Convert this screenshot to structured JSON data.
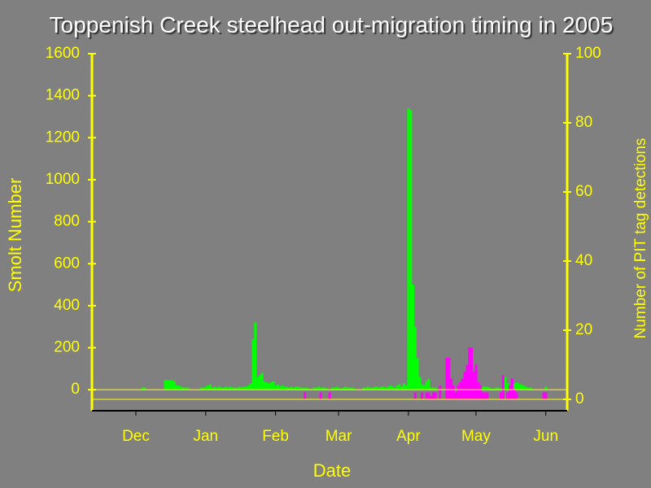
{
  "chart_data": {
    "type": "bar",
    "title": "Toppenish Creek steelhead out-migration timing in 2005",
    "x_label": "Date",
    "y_label": "Smolt Number",
    "y2_label": "Number of PIT tag detections",
    "categories": [
      null,
      null,
      null,
      null,
      null,
      null,
      null,
      null,
      null,
      null,
      null,
      null,
      null,
      null,
      null,
      null,
      null,
      null,
      null,
      "Dec",
      null,
      null,
      null,
      null,
      null,
      null,
      null,
      null,
      null,
      null,
      null,
      null,
      null,
      null,
      null,
      null,
      null,
      null,
      null,
      null,
      null,
      null,
      null,
      null,
      null,
      null,
      null,
      null,
      null,
      null,
      "Jan",
      null,
      null,
      null,
      null,
      null,
      null,
      null,
      null,
      null,
      null,
      null,
      null,
      null,
      null,
      null,
      null,
      null,
      null,
      null,
      null,
      null,
      null,
      null,
      null,
      null,
      null,
      null,
      null,
      null,
      null,
      "Feb",
      null,
      null,
      null,
      null,
      null,
      null,
      null,
      null,
      null,
      null,
      null,
      null,
      null,
      null,
      null,
      null,
      null,
      null,
      null,
      null,
      null,
      null,
      null,
      null,
      null,
      null,
      null,
      "Mar",
      null,
      null,
      null,
      null,
      null,
      null,
      null,
      null,
      null,
      null,
      null,
      null,
      null,
      null,
      null,
      null,
      null,
      null,
      null,
      null,
      null,
      null,
      null,
      null,
      null,
      null,
      null,
      null,
      null,
      null,
      "Apr",
      null,
      null,
      null,
      null,
      null,
      null,
      null,
      null,
      null,
      null,
      null,
      null,
      null,
      null,
      null,
      null,
      null,
      null,
      null,
      null,
      null,
      null,
      null,
      null,
      null,
      null,
      null,
      null,
      null,
      "May",
      null,
      null,
      null,
      null,
      null,
      null,
      null,
      null,
      null,
      null,
      null,
      null,
      null,
      null,
      null,
      null,
      null,
      null,
      null,
      null,
      null,
      null,
      null,
      null,
      null,
      null,
      null,
      null,
      null,
      null,
      "Jun",
      null,
      null,
      null,
      null,
      null,
      null,
      null,
      null,
      null
    ],
    "series": [
      {
        "color": "#00ff00",
        "axis": "y",
        "values": [
          0,
          0,
          0,
          0,
          0,
          0,
          0,
          0,
          0,
          0,
          0,
          0,
          0,
          0,
          0,
          0,
          0,
          0,
          0,
          0,
          0,
          0,
          10,
          10,
          0,
          0,
          0,
          0,
          0,
          0,
          0,
          0,
          45,
          45,
          45,
          45,
          40,
          20,
          20,
          15,
          10,
          10,
          10,
          0,
          0,
          0,
          0,
          0,
          10,
          10,
          15,
          20,
          25,
          10,
          15,
          10,
          15,
          10,
          10,
          15,
          10,
          15,
          10,
          10,
          10,
          15,
          10,
          15,
          15,
          20,
          30,
          240,
          320,
          60,
          70,
          80,
          40,
          35,
          30,
          35,
          40,
          20,
          25,
          15,
          20,
          15,
          15,
          10,
          15,
          10,
          15,
          15,
          10,
          10,
          10,
          10,
          5,
          0,
          10,
          10,
          15,
          10,
          10,
          10,
          5,
          0,
          10,
          10,
          15,
          10,
          5,
          10,
          15,
          10,
          10,
          10,
          5,
          0,
          0,
          0,
          10,
          10,
          15,
          10,
          10,
          15,
          15,
          10,
          15,
          15,
          10,
          15,
          20,
          15,
          10,
          20,
          25,
          15,
          30,
          20,
          1340,
          1330,
          500,
          300,
          150,
          60,
          25,
          20,
          40,
          50,
          10,
          10,
          10,
          0,
          0,
          0,
          0,
          0,
          0,
          0,
          0,
          0,
          0,
          0,
          0,
          0,
          0,
          0,
          0,
          0,
          0,
          0,
          15,
          15,
          15,
          15,
          10,
          5,
          5,
          10,
          10,
          5,
          10,
          60,
          30,
          20,
          15,
          30,
          35,
          30,
          25,
          20,
          15,
          10,
          10,
          5,
          0,
          0,
          0,
          0,
          0,
          15,
          0,
          0,
          0,
          0,
          0,
          0,
          0,
          0,
          0
        ]
      },
      {
        "color": "#ff00ff",
        "axis": "y2",
        "values": [
          0,
          0,
          0,
          0,
          0,
          0,
          0,
          0,
          0,
          0,
          0,
          0,
          0,
          0,
          0,
          0,
          0,
          0,
          0,
          0,
          0,
          0,
          0,
          0,
          0,
          0,
          0,
          0,
          0,
          0,
          0,
          0,
          0,
          0,
          0,
          0,
          0,
          0,
          0,
          0,
          0,
          0,
          0,
          0,
          0,
          0,
          0,
          0,
          0,
          0,
          0,
          0,
          0,
          0,
          0,
          0,
          0,
          0,
          0,
          0,
          0,
          0,
          0,
          0,
          0,
          0,
          0,
          0,
          0,
          0,
          0,
          0,
          0,
          0,
          0,
          0,
          0,
          0,
          0,
          0,
          0,
          0,
          0,
          0,
          0,
          0,
          0,
          0,
          0,
          0,
          0,
          0,
          0,
          0,
          2,
          0,
          0,
          0,
          0,
          0,
          0,
          2,
          0,
          0,
          0,
          2,
          0,
          0,
          0,
          0,
          0,
          0,
          0,
          0,
          0,
          0,
          0,
          0,
          0,
          0,
          0,
          0,
          0,
          0,
          0,
          0,
          0,
          0,
          0,
          0,
          0,
          0,
          0,
          0,
          0,
          0,
          0,
          0,
          0,
          0,
          0,
          0,
          0,
          2,
          0,
          0,
          2,
          0,
          2,
          2,
          1,
          2,
          2,
          0,
          4,
          0,
          0,
          12,
          12,
          6,
          4,
          2,
          4,
          5,
          6,
          8,
          10,
          15,
          15,
          8,
          10,
          5,
          4,
          2,
          2,
          2,
          0,
          0,
          0,
          0,
          0,
          2,
          7,
          0,
          2,
          4,
          6,
          3,
          2,
          0,
          0,
          0,
          0,
          0,
          0,
          0,
          0,
          0,
          0,
          0,
          2,
          2,
          0,
          0,
          0,
          0,
          0,
          0,
          0,
          0,
          0
        ]
      }
    ],
    "ylim": [
      -100,
      1600
    ],
    "yticks": [
      0,
      200,
      400,
      600,
      800,
      1000,
      1200,
      1400,
      1600
    ],
    "y2lim": [
      -3.3,
      100
    ],
    "y2ticks": [
      0,
      20,
      40,
      60,
      80,
      100
    ],
    "zero_lines": true
  }
}
